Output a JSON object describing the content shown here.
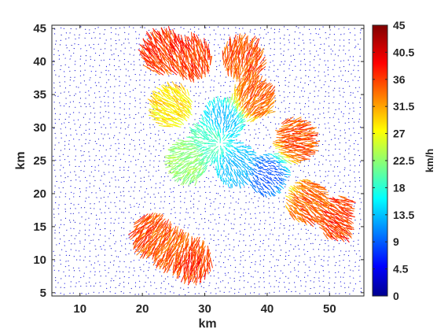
{
  "chart_data": {
    "type": "quiver",
    "title": "",
    "xlabel": "km",
    "ylabel": "km",
    "xlim": [
      5.5,
      55.5
    ],
    "ylim": [
      4.5,
      45.5
    ],
    "xticks": [
      10,
      20,
      30,
      40,
      50
    ],
    "yticks": [
      5,
      10,
      15,
      20,
      25,
      30,
      35,
      40,
      45
    ],
    "grid": false,
    "colormap": "jet",
    "colorbar": {
      "label": "km/h",
      "min": 0,
      "max": 45,
      "ticks": [
        0,
        4.5,
        9,
        13.5,
        18,
        22.5,
        27,
        31.5,
        36,
        40.5,
        45
      ]
    },
    "series": [
      {
        "field": "surface-current-vectors",
        "description_points": [
          {
            "x": 23.5,
            "y": 41,
            "speed": 38
          },
          {
            "x": 28,
            "y": 40,
            "speed": 38
          },
          {
            "x": 36,
            "y": 40,
            "speed": 37
          },
          {
            "x": 37.5,
            "y": 34,
            "speed": 36
          },
          {
            "x": 44,
            "y": 28,
            "speed": 37
          },
          {
            "x": 46,
            "y": 19,
            "speed": 36
          },
          {
            "x": 51,
            "y": 16.5,
            "speed": 38
          },
          {
            "x": 22,
            "y": 14,
            "speed": 37
          },
          {
            "x": 25,
            "y": 12,
            "speed": 36
          },
          {
            "x": 28,
            "y": 10.5,
            "speed": 38
          },
          {
            "x": 31,
            "y": 28,
            "speed": 20
          },
          {
            "x": 35,
            "y": 24.5,
            "speed": 14
          },
          {
            "x": 40,
            "y": 23,
            "speed": 9
          },
          {
            "x": 27.5,
            "y": 25,
            "speed": 24
          },
          {
            "x": 33,
            "y": 31,
            "speed": 14
          },
          {
            "x": 25,
            "y": 33,
            "speed": 30
          }
        ]
      }
    ]
  }
}
